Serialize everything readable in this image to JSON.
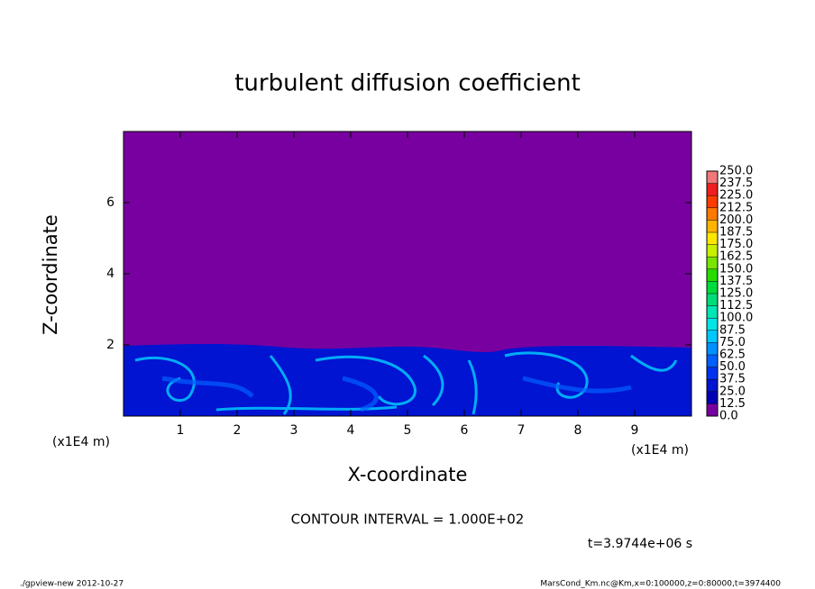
{
  "chart_data": {
    "type": "contour",
    "title": "turbulent diffusion coefficient",
    "xlabel": "X-coordinate",
    "ylabel": "Z-coordinate",
    "x_unit_label": "(x1E4 m)",
    "xlim": [
      0,
      10
    ],
    "ylim": [
      0,
      8
    ],
    "xticks": [
      1,
      2,
      3,
      4,
      5,
      6,
      7,
      8,
      9
    ],
    "yticks": [
      2,
      4,
      6
    ],
    "levels": [
      {
        "value": 0,
        "label": "0.0"
      },
      {
        "value": 12.5,
        "label": "12.5"
      },
      {
        "value": 25,
        "label": "25.0"
      },
      {
        "value": 37.5,
        "label": "37.5"
      },
      {
        "value": 50,
        "label": "50.0"
      },
      {
        "value": 62.5,
        "label": "62.5"
      },
      {
        "value": 75,
        "label": "75.0"
      },
      {
        "value": 87.5,
        "label": "87.5"
      },
      {
        "value": 100,
        "label": "100.0"
      },
      {
        "value": 112.5,
        "label": "112.5"
      },
      {
        "value": 125,
        "label": "125.0"
      },
      {
        "value": 137.5,
        "label": "137.5"
      },
      {
        "value": 150,
        "label": "150.0"
      },
      {
        "value": 162.5,
        "label": "162.5"
      },
      {
        "value": 175,
        "label": "175.0"
      },
      {
        "value": 187.5,
        "label": "187.5"
      },
      {
        "value": 200,
        "label": "200.0"
      },
      {
        "value": 212.5,
        "label": "212.5"
      },
      {
        "value": 225,
        "label": "225.0"
      },
      {
        "value": 237.5,
        "label": "237.5"
      },
      {
        "value": 250,
        "label": "250.0"
      }
    ],
    "colors": [
      "#7800a0",
      "#0000b4",
      "#0014d2",
      "#0032f0",
      "#0060ff",
      "#0090ff",
      "#00c8ff",
      "#00e6e6",
      "#00e6b4",
      "#00dc78",
      "#00dc3c",
      "#28dc00",
      "#78e600",
      "#c8f000",
      "#ffe600",
      "#ffb400",
      "#ff7800",
      "#ff3c00",
      "#f01e1e",
      "#f07878"
    ],
    "contour_interval": "CONTOUR INTERVAL = 1.000E+02",
    "time_label": "t=3.9744e+06 s",
    "footer_left": "./gpview-new  2012-10-27",
    "footer_right": "MarsCond_Km.nc@Km,x=0:100000,z=0:80000,t=3974400"
  }
}
